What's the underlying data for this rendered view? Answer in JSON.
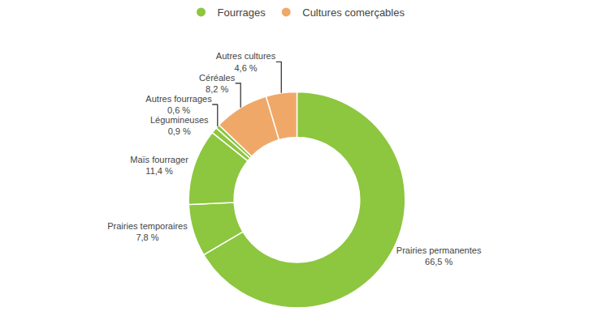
{
  "chart_data": {
    "type": "pie",
    "categories": [
      "Prairies permanentes",
      "Prairies temporaires",
      "Maïs fourrager",
      "Légumineuses",
      "Autres fourrages",
      "Céréales",
      "Autres cultures"
    ],
    "values": [
      66.5,
      7.8,
      11.4,
      0.9,
      0.6,
      8.2,
      4.6
    ],
    "value_labels": [
      "66,5 %",
      "7,8 %",
      "11,4 %",
      "0,9 %",
      "0,6 %",
      "8,2 %",
      "4,6 %"
    ],
    "colors": [
      "#8dc63f",
      "#8dc63f",
      "#8dc63f",
      "#8dc63f",
      "#8dc63f",
      "#f0a868",
      "#f0a868"
    ],
    "series": [
      {
        "name": "Fourrages",
        "color": "#8dc63f"
      },
      {
        "name": "Cultures comerçables",
        "color": "#f0a868"
      }
    ],
    "legend": "top",
    "data_labels": true
  }
}
